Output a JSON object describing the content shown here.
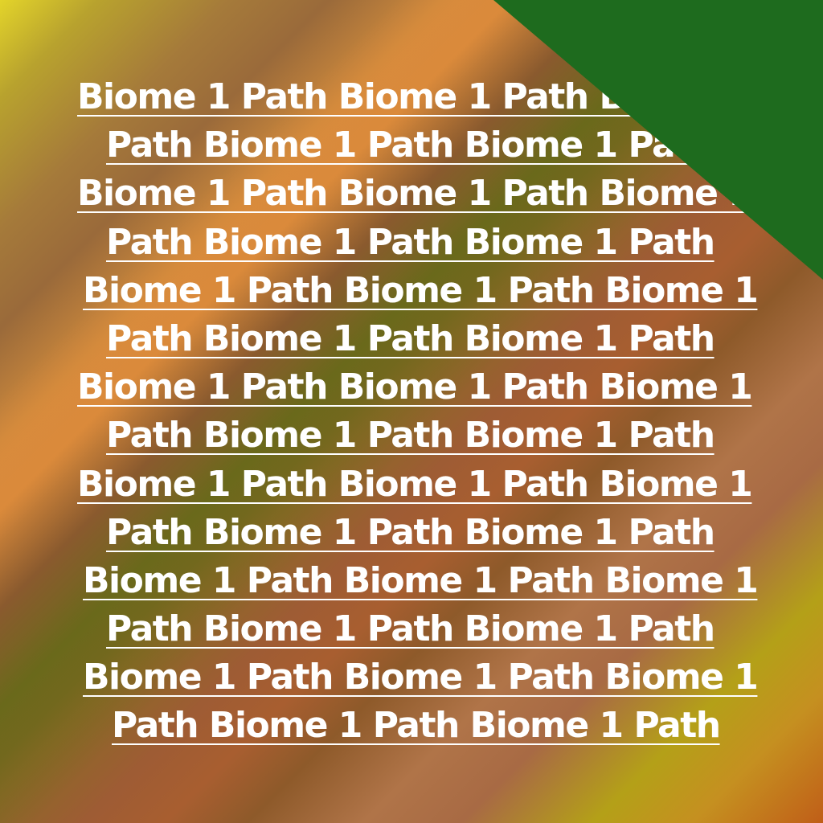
{
  "lines": [
    "Biome 1 Path Biome 1 Path Biome 1",
    "Path Biome 1 Path Biome 1 Path",
    "Biome 1 Path Biome 1 Path Biome 1",
    "Path Biome 1 Path Biome 1 Path",
    "Biome 1 Path Biome 1 Path Biome 1",
    "Path Biome 1 Path Biome 1 Path",
    "Biome 1 Path Biome 1 Path Biome 1",
    "Path Biome 1 Path Biome 1 Path",
    "Biome 1 Path Biome 1 Path Biome 1",
    "Path Biome 1 Path Biome 1 Path",
    "Biome 1 Path Biome 1 Path Biome 1",
    "Path Biome 1 Path Biome 1 Path",
    "Biome 1 Path Biome 1 Path Biome 1",
    "Path Biome 1 Path Biome 1 Path"
  ],
  "colors": {
    "text": "#ffffff",
    "corner": "#1e6b1e"
  }
}
